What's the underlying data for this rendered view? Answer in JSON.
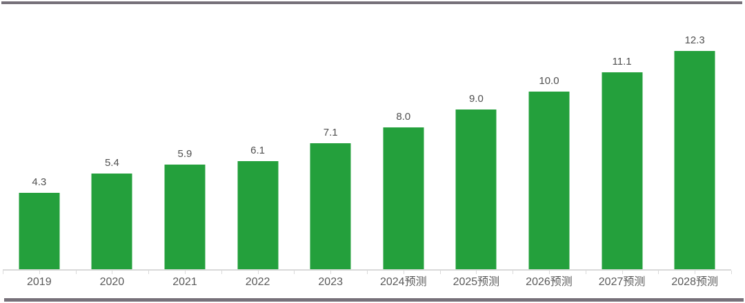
{
  "page": {
    "background": "#ffffff",
    "top_rule_color": "#767079",
    "bottom_rule_color": "#767079"
  },
  "chart_data": {
    "type": "bar",
    "categories": [
      "2019",
      "2020",
      "2021",
      "2022",
      "2023",
      "2024预测",
      "2025预测",
      "2026预测",
      "2027预测",
      "2028预测"
    ],
    "values": [
      4.3,
      5.4,
      5.9,
      6.1,
      7.1,
      8.0,
      9.0,
      10.0,
      11.1,
      12.3
    ],
    "data_labels": [
      "4.3",
      "5.4",
      "5.9",
      "6.1",
      "7.1",
      "8.0",
      "9.0",
      "10.0",
      "11.1",
      "12.3"
    ],
    "bar_color": "#24a03c",
    "value_label_color": "#4f4f4f",
    "axis_label_color": "#595959",
    "axis_line_color": "#d9d9d9",
    "ylim": [
      0,
      14
    ],
    "y_axis_visible": false,
    "gridlines": false,
    "legend": false
  }
}
